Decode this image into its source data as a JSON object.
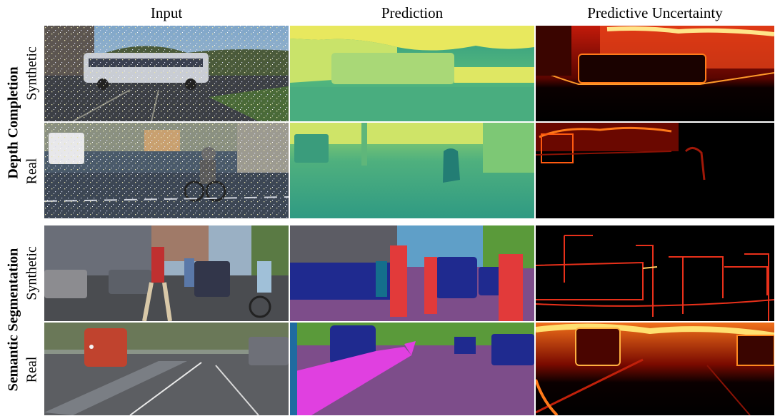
{
  "columns": [
    "Input",
    "Prediction",
    "Predictive Uncertainty"
  ],
  "groups": [
    {
      "label": "Depth Completion",
      "rows": [
        "Synthetic",
        "Real"
      ]
    },
    {
      "label": "Semantic Segmentation",
      "rows": [
        "Synthetic",
        "Real"
      ]
    }
  ],
  "colors": {
    "depth_near": "#4fb47a",
    "depth_far": "#f1ec5c",
    "seg_road": "#7d4d8a",
    "seg_car": "#1f2a8f",
    "seg_person": "#e23a3a",
    "seg_sidewalk": "#e040e0",
    "seg_vegetation": "#5a9a3a",
    "seg_sky": "#5f9fc8",
    "seg_building": "#606060",
    "uncertainty_low": "#000000",
    "uncertainty_high": "#ffe060"
  }
}
